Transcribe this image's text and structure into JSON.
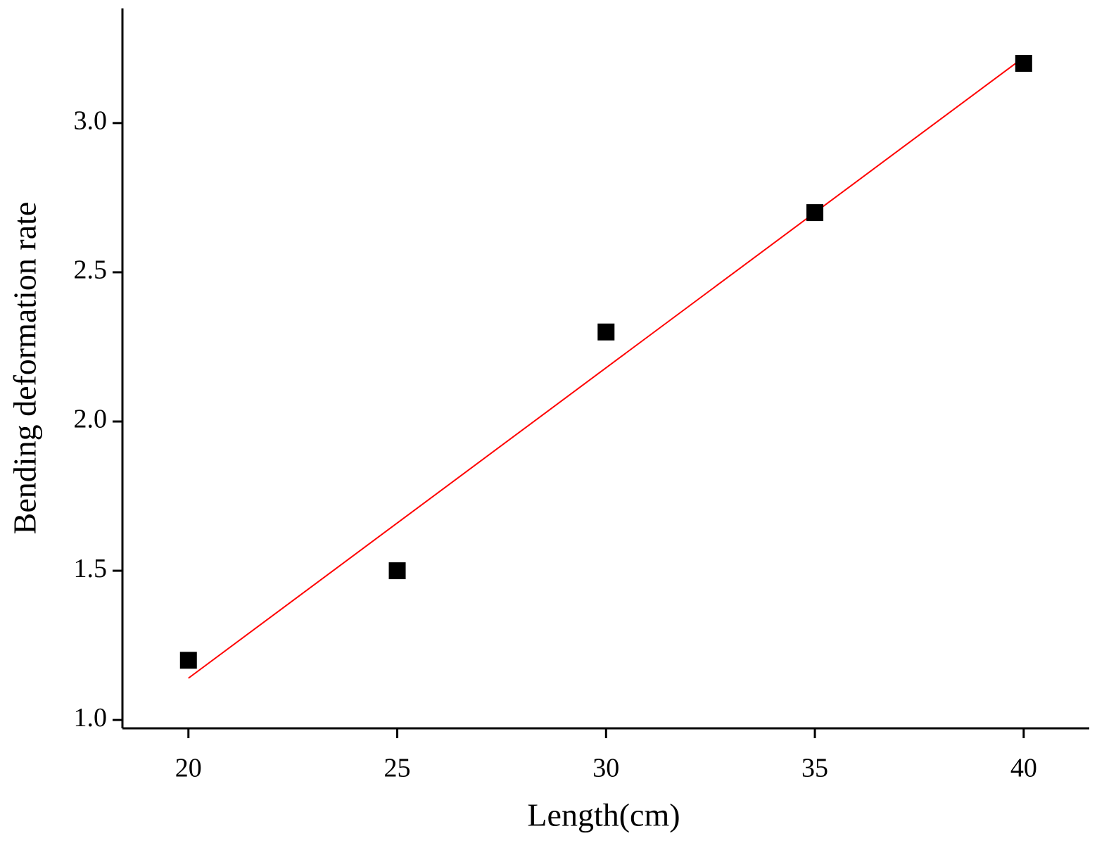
{
  "chart_data": {
    "type": "scatter",
    "x_label": "Length(cm)",
    "y_label": "Bending deformation rate",
    "series": [
      {
        "x": [
          20,
          25,
          30,
          35,
          40
        ],
        "values": [
          1.2,
          1.5,
          2.3,
          2.7,
          3.2
        ],
        "color": "#000000"
      }
    ],
    "fit": {
      "x": [
        20,
        40
      ],
      "values": [
        1.14,
        3.22
      ],
      "color": "#ff0000"
    },
    "xlim": [
      18.42,
      41.57
    ],
    "ylim": [
      0.972,
      3.384
    ],
    "xticks": [
      20,
      25,
      30,
      35,
      40
    ],
    "yticks": [
      {
        "value": 1,
        "label": "1.0"
      },
      {
        "value": 1.5,
        "label": "1.5"
      },
      {
        "value": 2,
        "label": "2.0"
      },
      {
        "value": 2.5,
        "label": "2.5"
      },
      {
        "value": 3,
        "label": "3.0"
      }
    ],
    "grid": false
  }
}
